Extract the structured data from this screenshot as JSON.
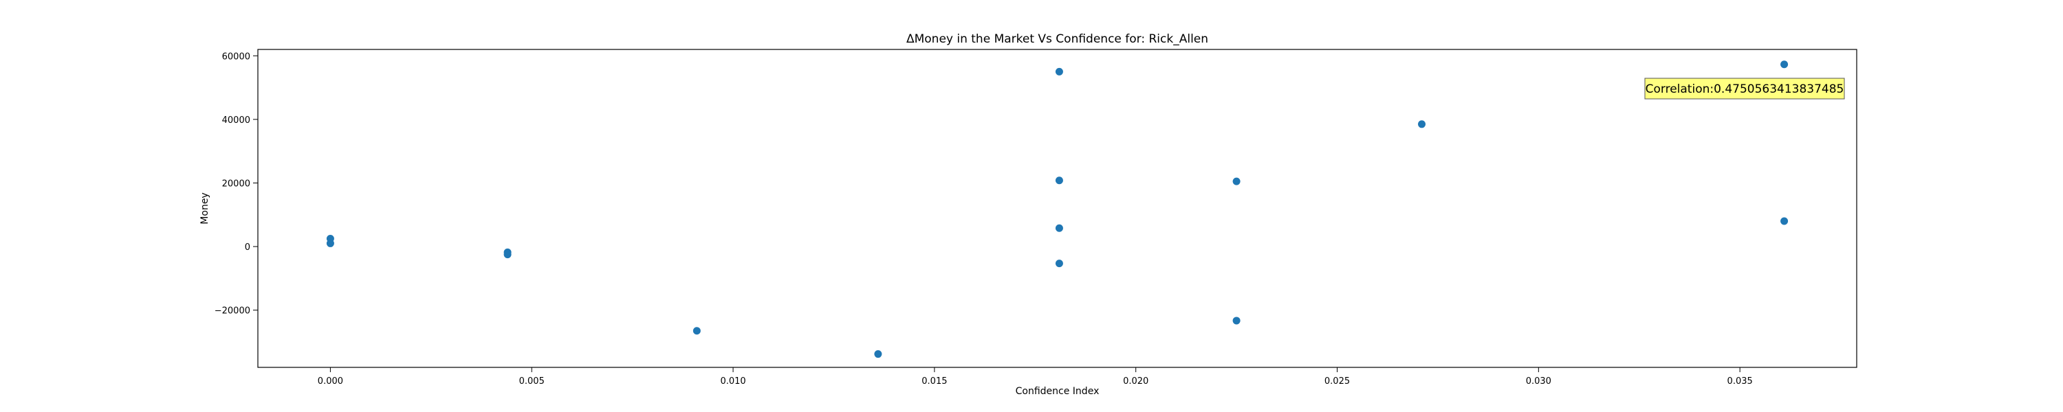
{
  "chart_data": {
    "type": "scatter",
    "title": "ΔMoney in the Market Vs Confidence for: Rick_Allen",
    "xlabel": "Confidence Index",
    "ylabel": "Money",
    "xlim": [
      -0.0018,
      0.0379
    ],
    "ylim": [
      -38000,
      62000
    ],
    "grid": false,
    "x_ticks": [
      0.0,
      0.005,
      0.01,
      0.015,
      0.02,
      0.025,
      0.03,
      0.035
    ],
    "x_tick_labels": [
      "0.000",
      "0.005",
      "0.010",
      "0.015",
      "0.020",
      "0.025",
      "0.030",
      "0.035"
    ],
    "y_ticks": [
      -20000,
      0,
      20000,
      40000,
      60000
    ],
    "y_tick_labels": [
      "−20000",
      "0",
      "20000",
      "40000",
      "60000"
    ],
    "marker_color": "#1f77b4",
    "points": [
      {
        "x": 0.0,
        "y": 2500
      },
      {
        "x": 0.0,
        "y": 1000
      },
      {
        "x": 0.0044,
        "y": -1800
      },
      {
        "x": 0.0044,
        "y": -2500
      },
      {
        "x": 0.0091,
        "y": -26500
      },
      {
        "x": 0.0136,
        "y": -33800
      },
      {
        "x": 0.0181,
        "y": 55000
      },
      {
        "x": 0.0181,
        "y": 20800
      },
      {
        "x": 0.0181,
        "y": 5800
      },
      {
        "x": 0.0181,
        "y": -5300
      },
      {
        "x": 0.0225,
        "y": 20500
      },
      {
        "x": 0.0225,
        "y": -23300
      },
      {
        "x": 0.0271,
        "y": 38500
      },
      {
        "x": 0.0361,
        "y": 57300
      },
      {
        "x": 0.0361,
        "y": 8000
      }
    ],
    "annotation": {
      "text": "Correlation:0.4750563413837485",
      "background": "#ffff80",
      "placement": "top-right"
    }
  }
}
